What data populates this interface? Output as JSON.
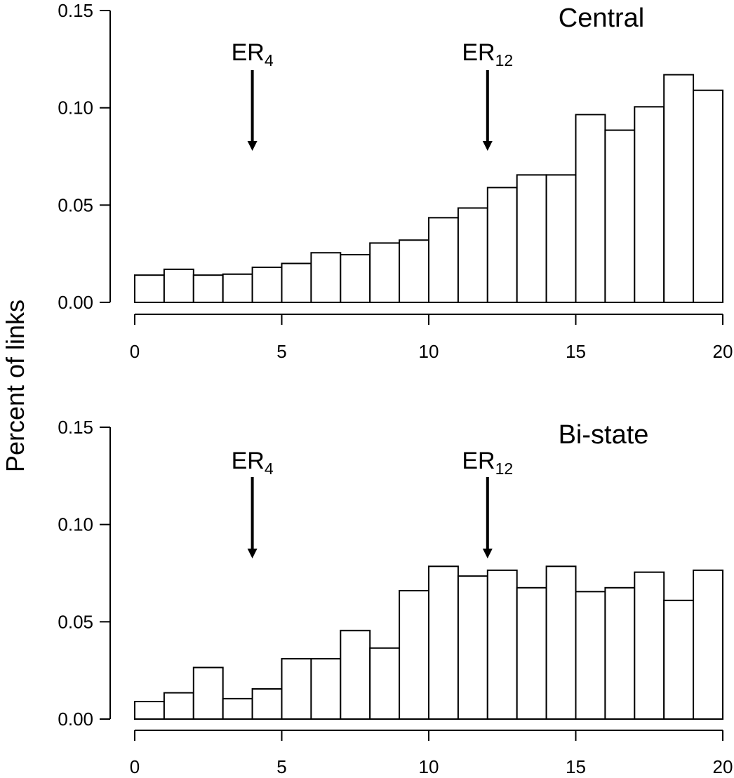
{
  "ylabel": "Percent of links",
  "chart_data": [
    {
      "type": "bar",
      "title": "Central",
      "xlim": [
        0,
        20
      ],
      "ylim": [
        0,
        0.15
      ],
      "x_ticks": [
        "0",
        "5",
        "10",
        "15",
        "20"
      ],
      "y_ticks": [
        "0.00",
        "0.05",
        "0.10",
        "0.15"
      ],
      "bin_width": 1,
      "bin_starts": [
        0,
        1,
        2,
        3,
        4,
        5,
        6,
        7,
        8,
        9,
        10,
        11,
        12,
        13,
        14,
        15,
        16,
        17,
        18,
        19
      ],
      "values": [
        0.014,
        0.017,
        0.014,
        0.0145,
        0.018,
        0.02,
        0.0255,
        0.0245,
        0.0305,
        0.032,
        0.0435,
        0.0485,
        0.059,
        0.0655,
        0.0655,
        0.0965,
        0.0885,
        0.1005,
        0.117,
        0.109
      ],
      "annotations": [
        {
          "base": "ER",
          "sub": "4",
          "x": 4
        },
        {
          "base": "ER",
          "sub": "12",
          "x": 12
        }
      ]
    },
    {
      "type": "bar",
      "title": "Bi-state",
      "xlim": [
        0,
        20
      ],
      "ylim": [
        0,
        0.15
      ],
      "x_ticks": [
        "0",
        "5",
        "10",
        "15",
        "20"
      ],
      "y_ticks": [
        "0.00",
        "0.05",
        "0.10",
        "0.15"
      ],
      "bin_width": 1,
      "bin_starts": [
        0,
        1,
        2,
        3,
        4,
        5,
        6,
        7,
        8,
        9,
        10,
        11,
        12,
        13,
        14,
        15,
        16,
        17,
        18,
        19
      ],
      "values": [
        0.009,
        0.0135,
        0.0265,
        0.0105,
        0.0155,
        0.031,
        0.031,
        0.0455,
        0.0365,
        0.066,
        0.0785,
        0.0735,
        0.0765,
        0.0675,
        0.0785,
        0.0655,
        0.0675,
        0.0755,
        0.061,
        0.0765
      ],
      "annotations": [
        {
          "base": "ER",
          "sub": "4",
          "x": 4
        },
        {
          "base": "ER",
          "sub": "12",
          "x": 12
        }
      ]
    }
  ]
}
